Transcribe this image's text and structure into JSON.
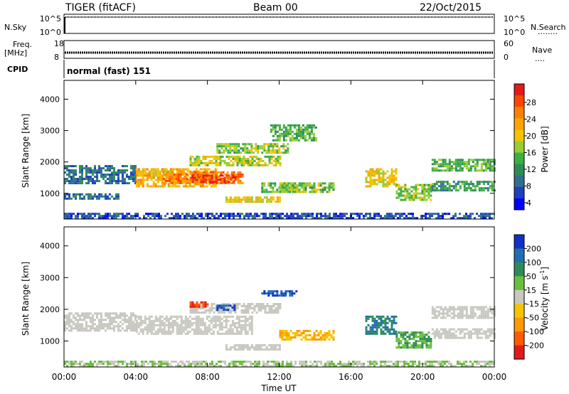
{
  "header": {
    "station": "TIGER (fitACF)",
    "beam": "Beam 00",
    "date": "22/Oct/2015"
  },
  "panels": {
    "nsky": {
      "left_label": "N.Sky",
      "left_ticks": [
        "10^5",
        "10^0"
      ],
      "right_ticks": [
        "10^5",
        "10^0"
      ],
      "right_label": "N.Search",
      "right_dots": "........"
    },
    "freq": {
      "left_label_1": "Freq.",
      "left_label_2": "[MHz]",
      "left_ticks": [
        "18",
        "8"
      ],
      "right_ticks": [
        "60",
        "0"
      ],
      "right_label": "Nave",
      "right_dots": "...."
    },
    "cpid": {
      "label": "CPID",
      "text": "normal (fast) 151"
    }
  },
  "axes": {
    "ylabel": "Slant Range [km]",
    "yticks": [
      "4000",
      "3000",
      "2000",
      "1000"
    ],
    "xticks": [
      "00:00",
      "04:00",
      "08:00",
      "12:00",
      "16:00",
      "20:00",
      "00:00"
    ],
    "xlabel": "Time UT"
  },
  "colorbars": {
    "power": {
      "label": "Power [dB]",
      "tick_labels": [
        "28",
        "24",
        "20",
        "16",
        "12",
        "8",
        "4"
      ],
      "colors": [
        "#e31a1c",
        "#ff4500",
        "#ff7f00",
        "#ffa500",
        "#f5c400",
        "#9acd32",
        "#3cb043",
        "#2e8b57",
        "#2f6f8f",
        "#1f3fbf",
        "#0000ff"
      ]
    },
    "velocity": {
      "label": "Velocity [m s",
      "label_sup": "-1",
      "label_end": "]",
      "tick_labels": [
        "200",
        "100",
        "50",
        "15",
        "-15",
        "-50",
        "-100",
        "-200"
      ],
      "colors": [
        "#1030c8",
        "#1f6fb0",
        "#2e8b57",
        "#6abf3c",
        "#c8c8c0",
        "#f5c400",
        "#ff9900",
        "#ff5a00",
        "#e31a1c"
      ]
    }
  },
  "chart_data": {
    "type": "heatmap",
    "title": "TIGER (fitACF)",
    "x": {
      "label": "Time UT",
      "range_hours": [
        0,
        24
      ],
      "ticks": [
        "00:00",
        "04:00",
        "08:00",
        "12:00",
        "16:00",
        "20:00",
        "00:00"
      ]
    },
    "y": {
      "label": "Slant Range [km]",
      "range": [
        180,
        4600
      ],
      "ticks": [
        1000,
        2000,
        3000,
        4000
      ]
    },
    "power_regions": [
      {
        "t0": 0.0,
        "t1": 4.0,
        "r0": 1300,
        "r1": 1900,
        "level": 6
      },
      {
        "t0": 0.0,
        "t1": 3.0,
        "r0": 800,
        "r1": 1000,
        "level": 6
      },
      {
        "t0": 4.0,
        "t1": 8.5,
        "r0": 1250,
        "r1": 1800,
        "level": 20
      },
      {
        "t0": 5.5,
        "t1": 10.0,
        "r0": 1300,
        "r1": 1700,
        "level": 24
      },
      {
        "t0": 7.0,
        "t1": 9.5,
        "r0": 1350,
        "r1": 1600,
        "level": 28
      },
      {
        "t0": 7.0,
        "t1": 12.0,
        "r0": 1900,
        "r1": 2200,
        "level": 16
      },
      {
        "t0": 8.5,
        "t1": 12.5,
        "r0": 2300,
        "r1": 2600,
        "level": 14
      },
      {
        "t0": 9.0,
        "t1": 12.0,
        "r0": 700,
        "r1": 900,
        "level": 18
      },
      {
        "t0": 11.0,
        "t1": 13.0,
        "r0": 1050,
        "r1": 1350,
        "level": 12
      },
      {
        "t0": 12.0,
        "t1": 15.0,
        "r0": 1050,
        "r1": 1350,
        "level": 14
      },
      {
        "t0": 11.5,
        "t1": 14.0,
        "r0": 2700,
        "r1": 3200,
        "level": 12
      },
      {
        "t0": 16.8,
        "t1": 18.5,
        "r0": 1200,
        "r1": 1800,
        "level": 18
      },
      {
        "t0": 18.5,
        "t1": 20.5,
        "r0": 800,
        "r1": 1300,
        "level": 14
      },
      {
        "t0": 20.5,
        "t1": 24.0,
        "r0": 1700,
        "r1": 2100,
        "level": 12
      },
      {
        "t0": 20.5,
        "t1": 24.0,
        "r0": 1100,
        "r1": 1400,
        "level": 10
      },
      {
        "t0": 0.0,
        "t1": 24.0,
        "r0": 200,
        "r1": 380,
        "level": 4
      }
    ],
    "velocity_regions": [
      {
        "t0": 0.0,
        "t1": 4.0,
        "r0": 1300,
        "r1": 1900,
        "vel": 0
      },
      {
        "t0": 4.0,
        "t1": 10.5,
        "r0": 1250,
        "r1": 1800,
        "vel": 0
      },
      {
        "t0": 7.0,
        "t1": 12.0,
        "r0": 1900,
        "r1": 2200,
        "vel": 0
      },
      {
        "t0": 7.0,
        "t1": 8.0,
        "r0": 2050,
        "r1": 2250,
        "vel": -200
      },
      {
        "t0": 8.5,
        "t1": 9.5,
        "r0": 1950,
        "r1": 2150,
        "vel": 200
      },
      {
        "t0": 9.0,
        "t1": 12.0,
        "r0": 700,
        "r1": 900,
        "vel": 0
      },
      {
        "t0": 11.0,
        "t1": 13.0,
        "r0": 2400,
        "r1": 2600,
        "vel": 200
      },
      {
        "t0": 12.0,
        "t1": 15.0,
        "r0": 1050,
        "r1": 1350,
        "vel": -50
      },
      {
        "t0": 16.8,
        "t1": 18.5,
        "r0": 1200,
        "r1": 1800,
        "vel": 100
      },
      {
        "t0": 18.5,
        "t1": 20.5,
        "r0": 800,
        "r1": 1300,
        "vel": 50
      },
      {
        "t0": 20.5,
        "t1": 24.0,
        "r0": 1700,
        "r1": 2100,
        "vel": 0
      },
      {
        "t0": 20.5,
        "t1": 24.0,
        "r0": 1100,
        "r1": 1400,
        "vel": 0
      },
      {
        "t0": 0.0,
        "t1": 24.0,
        "r0": 200,
        "r1": 380,
        "vel": 15
      }
    ]
  }
}
